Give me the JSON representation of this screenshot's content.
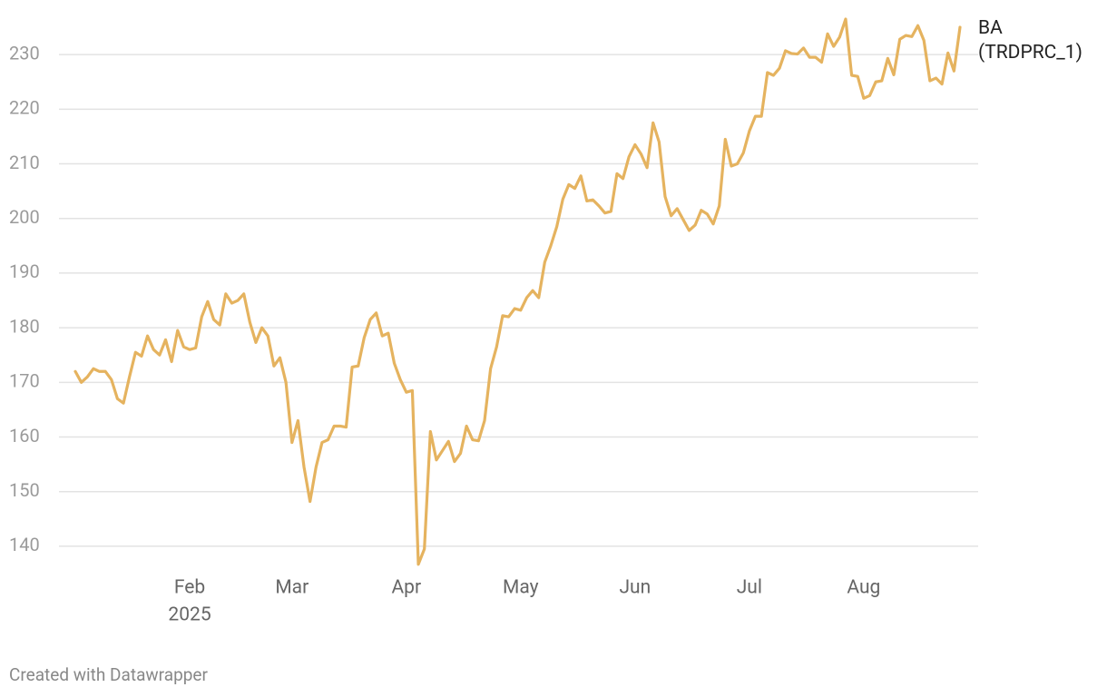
{
  "chart_data": {
    "type": "line",
    "footer": "Created with Datawrapper",
    "x_year_label": "2025",
    "categories": [
      null,
      null,
      null,
      null,
      null,
      null,
      null,
      null,
      null,
      null,
      null,
      null,
      null,
      null,
      null,
      null,
      null,
      null,
      null,
      "Feb",
      null,
      null,
      null,
      null,
      null,
      null,
      null,
      null,
      null,
      null,
      null,
      null,
      null,
      null,
      null,
      null,
      "Mar",
      null,
      null,
      null,
      null,
      null,
      null,
      null,
      null,
      null,
      null,
      null,
      null,
      null,
      null,
      null,
      null,
      null,
      null,
      "Apr",
      null,
      null,
      null,
      null,
      null,
      null,
      null,
      null,
      null,
      null,
      null,
      null,
      null,
      null,
      null,
      null,
      null,
      null,
      "May",
      null,
      null,
      null,
      null,
      null,
      null,
      null,
      null,
      null,
      null,
      null,
      null,
      null,
      null,
      null,
      null,
      null,
      null,
      "Jun",
      null,
      null,
      null,
      null,
      null,
      null,
      null,
      null,
      null,
      null,
      null,
      null,
      null,
      null,
      null,
      null,
      null,
      null,
      "Jul",
      null,
      null,
      null,
      null,
      null,
      null,
      null,
      null,
      null,
      null,
      null,
      null,
      null,
      null,
      null,
      null,
      null,
      null,
      "Aug",
      null,
      null,
      null,
      null,
      null,
      null,
      null,
      null,
      null,
      null,
      null,
      null,
      null,
      null,
      null,
      null
    ],
    "series": [
      {
        "name": "BA (TRDPRC_1)",
        "color": "#e5b35f",
        "values": [
          172,
          170,
          171,
          172.5,
          172,
          172,
          170.5,
          167,
          166.2,
          171,
          175.5,
          174.8,
          178.5,
          176,
          175,
          177.8,
          173.8,
          179.5,
          176.5,
          176,
          176.3,
          182,
          184.8,
          181.5,
          180.5,
          186.2,
          184.5,
          185,
          186.2,
          181,
          177.3,
          180,
          178.5,
          173,
          174.5,
          170,
          159,
          163,
          154.5,
          148.2,
          154.5,
          159,
          159.5,
          162,
          162,
          161.8,
          172.8,
          173,
          178.2,
          181.5,
          182.7,
          178.5,
          179,
          173.5,
          170.5,
          168.2,
          168.5,
          136.7,
          139.5,
          161,
          155.8,
          157.5,
          159.2,
          155.5,
          157,
          162,
          159.5,
          159.3,
          163,
          172.5,
          176.5,
          182.2,
          182,
          183.5,
          183.2,
          185.5,
          186.8,
          185.5,
          192,
          195,
          198.5,
          203.5,
          206.2,
          205.5,
          207.8,
          203.2,
          203.4,
          202.3,
          201,
          201.3,
          208.2,
          207.3,
          211.3,
          213.5,
          211.8,
          209.3,
          217.5,
          214,
          204,
          200.5,
          201.8,
          199.8,
          197.8,
          198.8,
          201.5,
          200.8,
          199,
          202.3,
          214.5,
          209.6,
          210,
          212,
          216,
          218.7,
          218.7,
          226.7,
          226.2,
          227.5,
          230.7,
          230.2,
          230.1,
          231.2,
          229.5,
          229.5,
          228.6,
          233.8,
          231.5,
          233.2,
          236.5,
          226.2,
          226,
          222,
          222.5,
          225,
          225.2,
          229.3,
          226.3,
          232.8,
          233.5,
          233.3,
          235.3,
          232.6,
          225.2,
          225.7,
          224.6,
          230.3,
          227,
          235
        ]
      }
    ],
    "ylim": [
      135,
      237
    ],
    "yticks": [
      140,
      150,
      160,
      170,
      180,
      190,
      200,
      210,
      220,
      230
    ],
    "grid": true
  }
}
